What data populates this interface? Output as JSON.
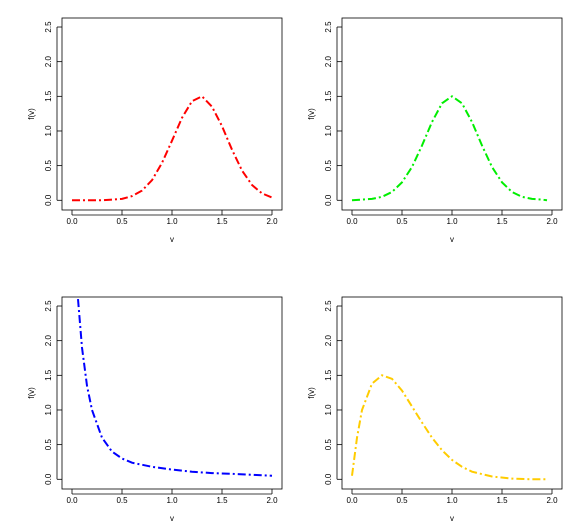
{
  "chart_data": [
    {
      "type": "line",
      "xlabel": "v",
      "ylabel": "f(v)",
      "color": "#ff0000",
      "x": [
        0,
        0.1,
        0.2,
        0.3,
        0.4,
        0.5,
        0.6,
        0.7,
        0.8,
        0.9,
        1.0,
        1.1,
        1.2,
        1.3,
        1.4,
        1.5,
        1.6,
        1.7,
        1.8,
        1.9,
        2.0
      ],
      "values": [
        0,
        0,
        0,
        0,
        0.01,
        0.02,
        0.06,
        0.14,
        0.29,
        0.54,
        0.86,
        1.19,
        1.43,
        1.5,
        1.35,
        1.07,
        0.73,
        0.43,
        0.22,
        0.1,
        0.04
      ],
      "xlim": [
        -0.1,
        2.1
      ],
      "ylim": [
        -0.14,
        2.63
      ],
      "xticks": [
        {
          "value": 0,
          "label": "0.0"
        },
        {
          "value": 0.5,
          "label": "0.5"
        },
        {
          "value": 1,
          "label": "1.0"
        },
        {
          "value": 1.5,
          "label": "1.5"
        },
        {
          "value": 2,
          "label": "2.0"
        }
      ],
      "yticks": [
        {
          "value": 0,
          "label": "0.0"
        },
        {
          "value": 0.5,
          "label": "0.5"
        },
        {
          "value": 1,
          "label": "1.0"
        },
        {
          "value": 1.5,
          "label": "1.5"
        },
        {
          "value": 2,
          "label": "2.0"
        },
        {
          "value": 2.5,
          "label": "2.5"
        }
      ]
    },
    {
      "type": "line",
      "xlabel": "v",
      "ylabel": "f(v)",
      "color": "#00ee00",
      "x": [
        0,
        0.1,
        0.2,
        0.3,
        0.4,
        0.5,
        0.6,
        0.7,
        0.8,
        0.9,
        1.0,
        1.1,
        1.2,
        1.3,
        1.4,
        1.5,
        1.6,
        1.7,
        1.8,
        1.9,
        1.95
      ],
      "values": [
        0,
        0.01,
        0.02,
        0.05,
        0.12,
        0.26,
        0.48,
        0.79,
        1.13,
        1.4,
        1.5,
        1.4,
        1.13,
        0.79,
        0.48,
        0.26,
        0.12,
        0.05,
        0.02,
        0.01,
        0
      ],
      "xlim": [
        -0.1,
        2.1
      ],
      "ylim": [
        -0.14,
        2.63
      ],
      "xticks": [
        {
          "value": 0,
          "label": "0.0"
        },
        {
          "value": 0.5,
          "label": "0.5"
        },
        {
          "value": 1,
          "label": "1.0"
        },
        {
          "value": 1.5,
          "label": "1.5"
        },
        {
          "value": 2,
          "label": "2.0"
        }
      ],
      "yticks": [
        {
          "value": 0,
          "label": "0.0"
        },
        {
          "value": 0.5,
          "label": "0.5"
        },
        {
          "value": 1,
          "label": "1.0"
        },
        {
          "value": 1.5,
          "label": "1.5"
        },
        {
          "value": 2,
          "label": "2.0"
        },
        {
          "value": 2.5,
          "label": "2.5"
        }
      ]
    },
    {
      "type": "line",
      "xlabel": "v",
      "ylabel": "f(v)",
      "color": "#0000ff",
      "x": [
        0.06,
        0.1,
        0.15,
        0.2,
        0.3,
        0.4,
        0.5,
        0.6,
        0.8,
        1.0,
        1.2,
        1.4,
        1.6,
        1.8,
        2.0
      ],
      "values": [
        2.6,
        1.9,
        1.35,
        1.0,
        0.6,
        0.4,
        0.3,
        0.24,
        0.18,
        0.14,
        0.11,
        0.09,
        0.08,
        0.065,
        0.05
      ],
      "xlim": [
        -0.1,
        2.1
      ],
      "ylim": [
        -0.14,
        2.63
      ],
      "xticks": [
        {
          "value": 0,
          "label": "0.0"
        },
        {
          "value": 0.5,
          "label": "0.5"
        },
        {
          "value": 1,
          "label": "1.0"
        },
        {
          "value": 1.5,
          "label": "1.5"
        },
        {
          "value": 2,
          "label": "2.0"
        }
      ],
      "yticks": [
        {
          "value": 0,
          "label": "0.0"
        },
        {
          "value": 0.5,
          "label": "0.5"
        },
        {
          "value": 1,
          "label": "1.0"
        },
        {
          "value": 1.5,
          "label": "1.5"
        },
        {
          "value": 2,
          "label": "2.0"
        },
        {
          "value": 2.5,
          "label": "2.5"
        }
      ]
    },
    {
      "type": "line",
      "xlabel": "v",
      "ylabel": "f(v)",
      "color": "#ffcc00",
      "x": [
        0,
        0.05,
        0.1,
        0.2,
        0.3,
        0.4,
        0.5,
        0.6,
        0.7,
        0.8,
        0.9,
        1.0,
        1.1,
        1.2,
        1.4,
        1.6,
        1.8,
        1.95
      ],
      "values": [
        0.05,
        0.6,
        1.0,
        1.38,
        1.5,
        1.45,
        1.28,
        1.05,
        0.82,
        0.6,
        0.42,
        0.28,
        0.18,
        0.11,
        0.04,
        0.01,
        0,
        0
      ],
      "xlim": [
        -0.1,
        2.1
      ],
      "ylim": [
        -0.14,
        2.63
      ],
      "xticks": [
        {
          "value": 0,
          "label": "0.0"
        },
        {
          "value": 0.5,
          "label": "0.5"
        },
        {
          "value": 1,
          "label": "1.0"
        },
        {
          "value": 1.5,
          "label": "1.5"
        },
        {
          "value": 2,
          "label": "2.0"
        }
      ],
      "yticks": [
        {
          "value": 0,
          "label": "0.0"
        },
        {
          "value": 0.5,
          "label": "0.5"
        },
        {
          "value": 1,
          "label": "1.0"
        },
        {
          "value": 1.5,
          "label": "1.5"
        },
        {
          "value": 2,
          "label": "2.0"
        },
        {
          "value": 2.5,
          "label": "2.5"
        }
      ]
    }
  ]
}
